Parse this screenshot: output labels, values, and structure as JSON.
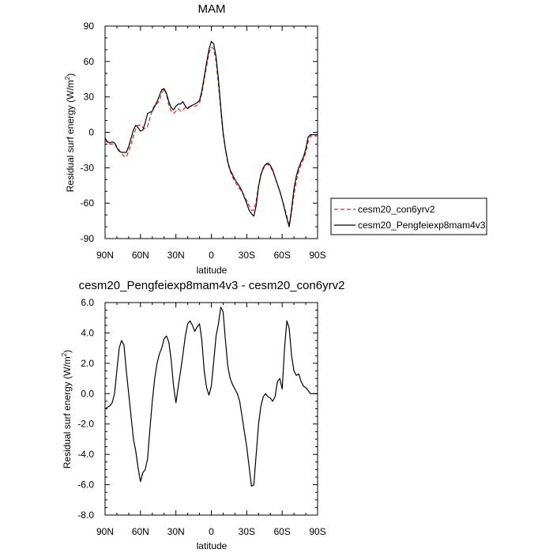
{
  "chart_data": [
    {
      "type": "line",
      "title": "MAM",
      "xlabel": "latitude",
      "ylabel": "Residual surf energy (W/m",
      "ylabel_sup": "2",
      "ylabel_close": ")",
      "xlim": [
        90,
        -90
      ],
      "ylim": [
        -90,
        90
      ],
      "xticks": [
        90,
        60,
        30,
        0,
        -30,
        -60,
        -90
      ],
      "xticklabels": [
        "90N",
        "60N",
        "30N",
        "0",
        "30S",
        "60S",
        "90S"
      ],
      "yticks": [
        -90,
        -60,
        -30,
        0,
        30,
        60,
        90
      ],
      "yticklabels": [
        "-90",
        "-60",
        "-30",
        "0",
        "30",
        "60",
        "90"
      ],
      "legend_position": "right",
      "series": [
        {
          "name": "cesm20_con6yrv2",
          "color": "#e8211d",
          "dash": "dashed",
          "x": [
            90,
            88,
            86,
            84,
            82,
            80,
            78,
            76,
            74,
            72,
            70,
            68,
            66,
            64,
            62,
            60,
            58,
            56,
            54,
            52,
            50,
            48,
            46,
            44,
            42,
            40,
            38,
            36,
            34,
            32,
            30,
            28,
            26,
            24,
            22,
            20,
            18,
            16,
            14,
            12,
            10,
            8,
            6,
            4,
            2,
            0,
            -2,
            -4,
            -6,
            -8,
            -10,
            -12,
            -14,
            -16,
            -18,
            -20,
            -22,
            -24,
            -26,
            -28,
            -30,
            -32,
            -34,
            -36,
            -38,
            -40,
            -42,
            -44,
            -46,
            -48,
            -50,
            -52,
            -54,
            -56,
            -58,
            -60,
            -62,
            -64,
            -66,
            -68,
            -70,
            -72,
            -74,
            -76,
            -78,
            -80,
            -82,
            -84,
            -86,
            -88,
            -90
          ],
          "y": [
            -6,
            -9,
            -10,
            -10,
            -9,
            -12,
            -15,
            -18,
            -20,
            -21,
            -16,
            -10,
            -3,
            3,
            6,
            6,
            4,
            3,
            5,
            12,
            19,
            23,
            24,
            27,
            33,
            37,
            32,
            23,
            18,
            16,
            18,
            20,
            18,
            19,
            21,
            21,
            22,
            22,
            22,
            23,
            25,
            33,
            45,
            56,
            67,
            72,
            71,
            60,
            40,
            18,
            -2,
            -15,
            -26,
            -33,
            -38,
            -42,
            -45,
            -48,
            -50,
            -54,
            -58,
            -62,
            -66,
            -66,
            -58,
            -45,
            -35,
            -31,
            -28,
            -27,
            -29,
            -33,
            -38,
            -44,
            -50,
            -57,
            -64,
            -71,
            -79,
            -68,
            -53,
            -41,
            -33,
            -27,
            -23,
            -17,
            -8,
            -3,
            -3,
            -3,
            -3
          ]
        },
        {
          "name": "cesm20_Pengfeiexp8mam4v3",
          "color": "#000000",
          "dash": "solid",
          "x": [
            90,
            88,
            86,
            84,
            82,
            80,
            78,
            76,
            74,
            72,
            70,
            68,
            66,
            64,
            62,
            60,
            58,
            56,
            54,
            52,
            50,
            48,
            46,
            44,
            42,
            40,
            38,
            36,
            34,
            32,
            30,
            28,
            26,
            24,
            22,
            20,
            18,
            16,
            14,
            12,
            10,
            8,
            6,
            4,
            2,
            0,
            -2,
            -4,
            -6,
            -8,
            -10,
            -12,
            -14,
            -16,
            -18,
            -20,
            -22,
            -24,
            -26,
            -28,
            -30,
            -32,
            -34,
            -36,
            -38,
            -40,
            -42,
            -44,
            -46,
            -48,
            -50,
            -52,
            -54,
            -56,
            -58,
            -60,
            -62,
            -64,
            -66,
            -68,
            -70,
            -72,
            -74,
            -76,
            -78,
            -80,
            -82,
            -84,
            -86,
            -88,
            -90
          ],
          "y": [
            -5,
            -8,
            -9,
            -8,
            -9,
            -13,
            -16,
            -17,
            -17,
            -17,
            -12,
            -5,
            2,
            6,
            4,
            1,
            2,
            8,
            16,
            17,
            18,
            22,
            26,
            31,
            36,
            37,
            33,
            26,
            21,
            19,
            22,
            24,
            24,
            26,
            22,
            20,
            22,
            23,
            24,
            25,
            27,
            35,
            47,
            59,
            70,
            77,
            75,
            64,
            45,
            21,
            0,
            -14,
            -25,
            -32,
            -36,
            -40,
            -43,
            -46,
            -50,
            -55,
            -60,
            -66,
            -69,
            -71,
            -62,
            -46,
            -36,
            -30,
            -27,
            -26,
            -28,
            -32,
            -38,
            -44,
            -50,
            -57,
            -65,
            -73,
            -80,
            -65,
            -48,
            -37,
            -30,
            -25,
            -21,
            -14,
            -4,
            -2,
            -2,
            -2,
            -2
          ]
        }
      ]
    },
    {
      "type": "line",
      "title": "cesm20_Pengfeiexp8mam4v3 - cesm20_con6yrv2",
      "xlabel": "latitude",
      "ylabel": "Residual surf energy (W/m",
      "ylabel_sup": "2",
      "ylabel_close": ")",
      "xlim": [
        90,
        -90
      ],
      "ylim": [
        -8,
        6
      ],
      "xticks": [
        90,
        60,
        30,
        0,
        -30,
        -60,
        -90
      ],
      "xticklabels": [
        "90N",
        "60N",
        "30N",
        "0",
        "30S",
        "60S",
        "90S"
      ],
      "yticks": [
        -8,
        -6,
        -4,
        -2,
        0,
        2,
        4,
        6
      ],
      "yticklabels": [
        "-8.0",
        "-6.0",
        "-4.0",
        "-2.0",
        "0.0",
        "2.0",
        "4.0",
        "6.0"
      ],
      "series": [
        {
          "color": "#000000",
          "dash": "solid",
          "x": [
            90,
            88,
            86,
            84,
            82,
            80,
            78,
            76,
            74,
            72,
            70,
            68,
            66,
            64,
            62,
            60,
            58,
            56,
            54,
            52,
            50,
            48,
            46,
            44,
            42,
            40,
            38,
            36,
            34,
            32,
            30,
            28,
            26,
            24,
            22,
            20,
            18,
            16,
            14,
            12,
            10,
            8,
            6,
            4,
            2,
            0,
            -2,
            -4,
            -6,
            -8,
            -10,
            -12,
            -14,
            -16,
            -18,
            -20,
            -22,
            -24,
            -26,
            -28,
            -30,
            -32,
            -34,
            -36,
            -38,
            -40,
            -42,
            -44,
            -46,
            -48,
            -50,
            -52,
            -54,
            -56,
            -58,
            -60,
            -62,
            -64,
            -66,
            -68,
            -70,
            -72,
            -74,
            -76,
            -78,
            -80,
            -82,
            -84,
            -86,
            -88,
            -90
          ],
          "y": [
            -1.0,
            -0.9,
            -0.8,
            -0.6,
            0.0,
            1.5,
            3.0,
            3.5,
            3.2,
            1.5,
            0.0,
            -1.5,
            -3.0,
            -3.8,
            -4.9,
            -5.8,
            -5.2,
            -5.0,
            -4.3,
            -2.3,
            -0.5,
            1.0,
            2.0,
            2.6,
            3.0,
            3.6,
            3.8,
            3.4,
            2.2,
            0.5,
            -0.6,
            0.5,
            1.5,
            2.6,
            3.8,
            4.6,
            4.8,
            4.5,
            4.1,
            4.4,
            4.6,
            3.5,
            1.5,
            0.4,
            -0.1,
            0.5,
            2.1,
            3.8,
            4.6,
            5.7,
            5.4,
            3.5,
            1.8,
            1.0,
            0.6,
            0.3,
            0.0,
            -0.5,
            -1.5,
            -2.5,
            -3.5,
            -4.8,
            -6.1,
            -6.0,
            -4.0,
            -2.0,
            -0.8,
            -0.2,
            0.0,
            -0.2,
            -0.3,
            -0.5,
            -0.2,
            0.8,
            1.0,
            0.3,
            3.0,
            4.8,
            4.3,
            2.5,
            1.5,
            1.2,
            1.3,
            0.8,
            0.5,
            0.4,
            0.2,
            0.0,
            0.0,
            0.0,
            0.0
          ]
        }
      ]
    }
  ]
}
